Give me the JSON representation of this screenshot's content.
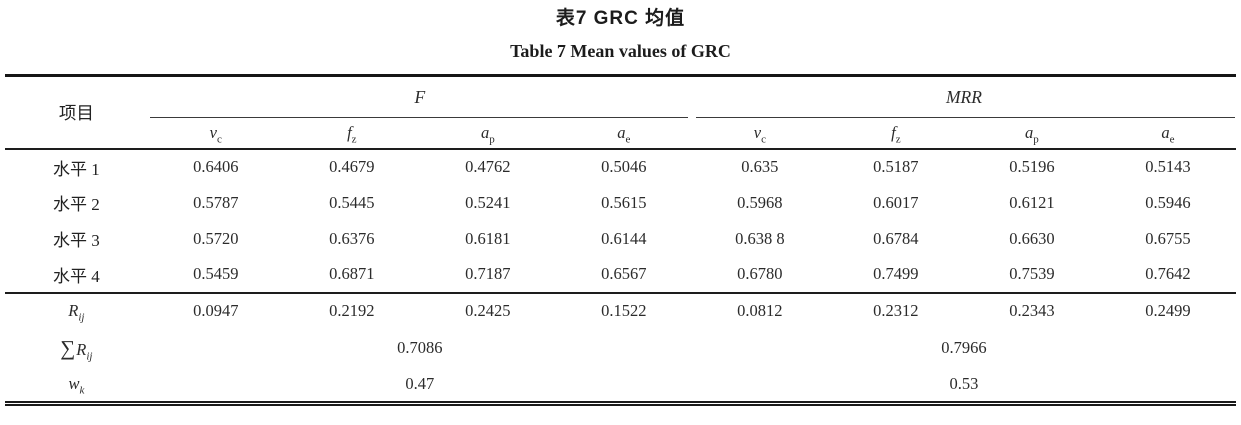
{
  "caption": {
    "zh": "表7 GRC 均值",
    "en": "Table 7  Mean values of GRC"
  },
  "table": {
    "item_header": "项目",
    "groups": [
      {
        "label": "F"
      },
      {
        "label": "MRR"
      }
    ],
    "sub_headers": [
      {
        "base": "v",
        "sub": "c"
      },
      {
        "base": "f",
        "sub": "z"
      },
      {
        "base": "a",
        "sub": "p"
      },
      {
        "base": "a",
        "sub": "e"
      },
      {
        "base": "v",
        "sub": "c"
      },
      {
        "base": "f",
        "sub": "z"
      },
      {
        "base": "a",
        "sub": "p"
      },
      {
        "base": "a",
        "sub": "e"
      }
    ],
    "rows": [
      {
        "label": "水平 1",
        "values": [
          "0.6406",
          "0.4679",
          "0.4762",
          "0.5046",
          "0.635",
          "0.5187",
          "0.5196",
          "0.5143"
        ]
      },
      {
        "label": "水平 2",
        "values": [
          "0.5787",
          "0.5445",
          "0.5241",
          "0.5615",
          "0.5968",
          "0.6017",
          "0.6121",
          "0.5946"
        ]
      },
      {
        "label": "水平 3",
        "values": [
          "0.5720",
          "0.6376",
          "0.6181",
          "0.6144",
          "0.638 8",
          "0.6784",
          "0.6630",
          "0.6755"
        ]
      },
      {
        "label": "水平 4",
        "values": [
          "0.5459",
          "0.6871",
          "0.7187",
          "0.6567",
          "0.6780",
          "0.7499",
          "0.7539",
          "0.7642"
        ]
      }
    ],
    "rij_row": {
      "label_base": "R",
      "label_sub": "ij",
      "values": [
        "0.0947",
        "0.2192",
        "0.2425",
        "0.1522",
        "0.0812",
        "0.2312",
        "0.2343",
        "0.2499"
      ]
    },
    "sum_row": {
      "sigma": "∑",
      "label_base": "R",
      "label_sub": "ij",
      "values": [
        "0.7086",
        "0.7966"
      ]
    },
    "wk_row": {
      "label_base": "w",
      "label_sub": "k",
      "values": [
        "0.47",
        "0.53"
      ]
    }
  }
}
